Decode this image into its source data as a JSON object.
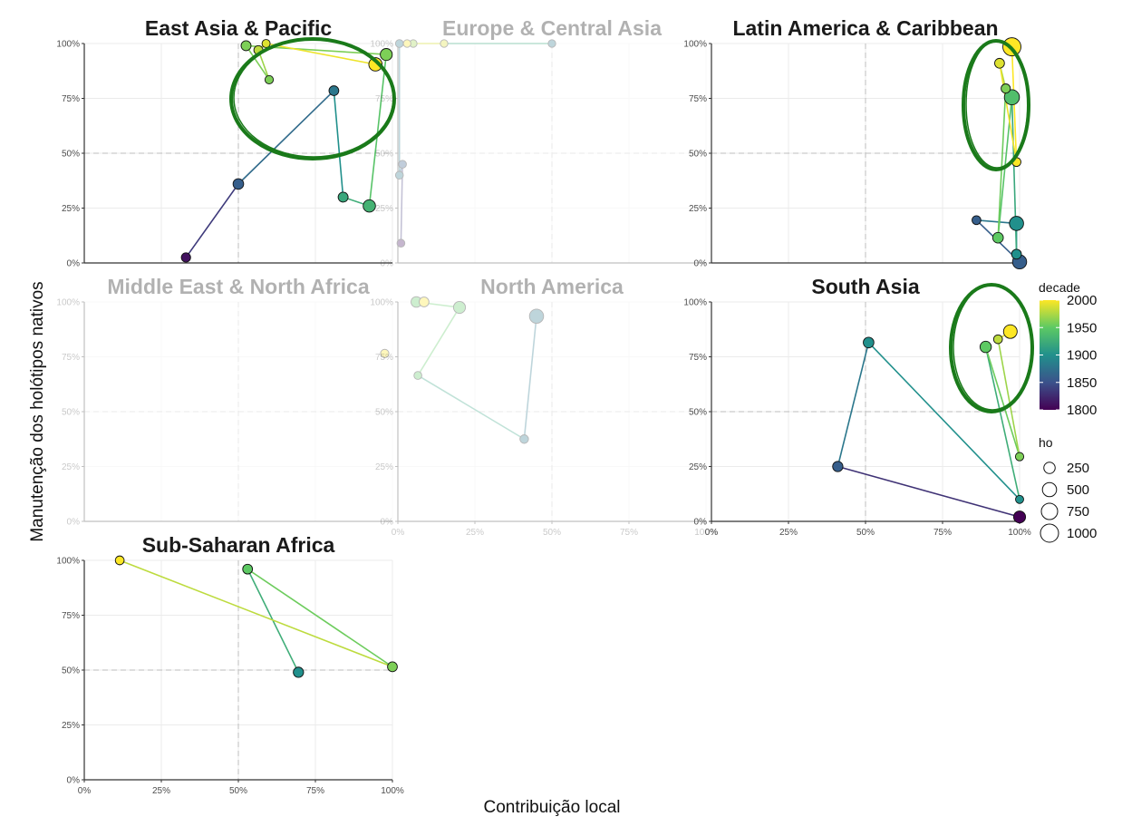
{
  "chart_data": {
    "type": "scatter",
    "xlabel": "Contribuição local",
    "ylabel": "Manutenção dos holótipos nativos",
    "xlim": [
      0,
      1
    ],
    "ylim": [
      0,
      1
    ],
    "tick_labels": [
      "0%",
      "25%",
      "50%",
      "75%",
      "100%"
    ],
    "reference_lines": {
      "x": 0.5,
      "y": 0.5,
      "style": "dashed"
    },
    "legend": {
      "placement": "right",
      "color_title": "decade",
      "color_ticks": [
        "2000",
        "1950",
        "1900",
        "1850",
        "1800"
      ],
      "size_title": "ho",
      "size_ticks": [
        "250",
        "500",
        "750",
        "1000"
      ]
    },
    "colors": {
      "viridis": [
        "#440154",
        "#3b528b",
        "#21908c",
        "#5dc963",
        "#fde725"
      ],
      "annotation": "#1a7a1a",
      "faded_title": "#cccccc",
      "title": "#1a1a1a"
    },
    "panels": [
      {
        "title": "East Asia & Pacific",
        "faded": false,
        "annotation": "ellipse",
        "points": [
          {
            "x": 0.33,
            "y": 0.025,
            "decade": 1810,
            "ho": 120
          },
          {
            "x": 0.5,
            "y": 0.36,
            "decade": 1860,
            "ho": 200
          },
          {
            "x": 0.81,
            "y": 0.785,
            "decade": 1880,
            "ho": 150
          },
          {
            "x": 0.84,
            "y": 0.3,
            "decade": 1920,
            "ho": 160
          },
          {
            "x": 0.925,
            "y": 0.26,
            "decade": 1930,
            "ho": 330
          },
          {
            "x": 0.98,
            "y": 0.95,
            "decade": 1960,
            "ho": 300
          },
          {
            "x": 0.525,
            "y": 0.99,
            "decade": 1960,
            "ho": 160
          },
          {
            "x": 0.6,
            "y": 0.835,
            "decade": 1960,
            "ho": 80
          },
          {
            "x": 0.565,
            "y": 0.97,
            "decade": 1980,
            "ho": 110
          },
          {
            "x": 0.59,
            "y": 1.0,
            "decade": 1990,
            "ho": 70
          },
          {
            "x": 0.945,
            "y": 0.905,
            "decade": 2000,
            "ho": 420
          }
        ]
      },
      {
        "title": "Europe & Central Asia",
        "faded": true,
        "points": [
          {
            "x": 0.01,
            "y": 0.09,
            "decade": 1810,
            "ho": 60
          },
          {
            "x": 0.015,
            "y": 0.45,
            "decade": 1860,
            "ho": 60
          },
          {
            "x": 0.005,
            "y": 0.4,
            "decade": 1880,
            "ho": 60
          },
          {
            "x": 0.005,
            "y": 1.0,
            "decade": 1880,
            "ho": 60
          },
          {
            "x": 0.5,
            "y": 1.0,
            "decade": 1880,
            "ho": 50
          },
          {
            "x": 0.15,
            "y": 1.0,
            "decade": 1990,
            "ho": 50
          },
          {
            "x": 0.05,
            "y": 1.0,
            "decade": 1970,
            "ho": 50
          },
          {
            "x": 0.03,
            "y": 1.0,
            "decade": 2000,
            "ho": 50
          }
        ]
      },
      {
        "title": "Latin America & Caribbean",
        "faded": false,
        "annotation": "ellipse",
        "points": [
          {
            "x": 1.0,
            "y": 0.005,
            "decade": 1860,
            "ho": 500
          },
          {
            "x": 0.86,
            "y": 0.195,
            "decade": 1860,
            "ho": 100
          },
          {
            "x": 0.99,
            "y": 0.18,
            "decade": 1900,
            "ho": 500
          },
          {
            "x": 0.99,
            "y": 0.04,
            "decade": 1900,
            "ho": 150
          },
          {
            "x": 0.93,
            "y": 0.115,
            "decade": 1950,
            "ho": 200
          },
          {
            "x": 0.975,
            "y": 0.755,
            "decade": 1940,
            "ho": 600
          },
          {
            "x": 0.955,
            "y": 0.795,
            "decade": 1960,
            "ho": 120
          },
          {
            "x": 0.935,
            "y": 0.91,
            "decade": 1990,
            "ho": 150
          },
          {
            "x": 0.99,
            "y": 0.46,
            "decade": 2000,
            "ho": 100
          },
          {
            "x": 0.975,
            "y": 0.985,
            "decade": 2000,
            "ho": 1000
          }
        ]
      },
      {
        "title": "Middle East & North Africa",
        "faded": true,
        "points": [
          {
            "x": 0.975,
            "y": 0.765,
            "decade": 2000,
            "ho": 80
          }
        ]
      },
      {
        "title": "North America",
        "faded": true,
        "points": [
          {
            "x": 0.45,
            "y": 0.935,
            "decade": 1880,
            "ho": 500
          },
          {
            "x": 0.41,
            "y": 0.375,
            "decade": 1880,
            "ho": 90
          },
          {
            "x": 0.065,
            "y": 0.665,
            "decade": 1950,
            "ho": 60
          },
          {
            "x": 0.2,
            "y": 0.975,
            "decade": 1950,
            "ho": 300
          },
          {
            "x": 0.06,
            "y": 1.0,
            "decade": 1950,
            "ho": 200
          },
          {
            "x": 0.085,
            "y": 1.0,
            "decade": 2000,
            "ho": 150
          }
        ]
      },
      {
        "title": "South Asia",
        "faded": false,
        "annotation": "ellipse",
        "points": [
          {
            "x": 1.0,
            "y": 0.02,
            "decade": 1800,
            "ho": 300
          },
          {
            "x": 0.41,
            "y": 0.25,
            "decade": 1860,
            "ho": 180
          },
          {
            "x": 0.51,
            "y": 0.815,
            "decade": 1900,
            "ho": 200
          },
          {
            "x": 0.89,
            "y": 0.795,
            "decade": 1950,
            "ho": 250
          },
          {
            "x": 0.93,
            "y": 0.83,
            "decade": 1980,
            "ho": 100
          },
          {
            "x": 0.97,
            "y": 0.865,
            "decade": 2000,
            "ho": 450
          },
          {
            "x": 1.0,
            "y": 0.295,
            "decade": 1960,
            "ho": 80
          },
          {
            "x": 1.0,
            "y": 0.1,
            "decade": 1900,
            "ho": 70
          }
        ]
      },
      {
        "title": "Sub-Saharan Africa",
        "faded": false,
        "points": [
          {
            "x": 0.695,
            "y": 0.49,
            "decade": 1900,
            "ho": 180
          },
          {
            "x": 0.53,
            "y": 0.96,
            "decade": 1950,
            "ho": 150
          },
          {
            "x": 0.115,
            "y": 1.0,
            "decade": 2000,
            "ho": 100
          },
          {
            "x": 1.0,
            "y": 0.515,
            "decade": 1960,
            "ho": 150
          }
        ]
      }
    ]
  }
}
